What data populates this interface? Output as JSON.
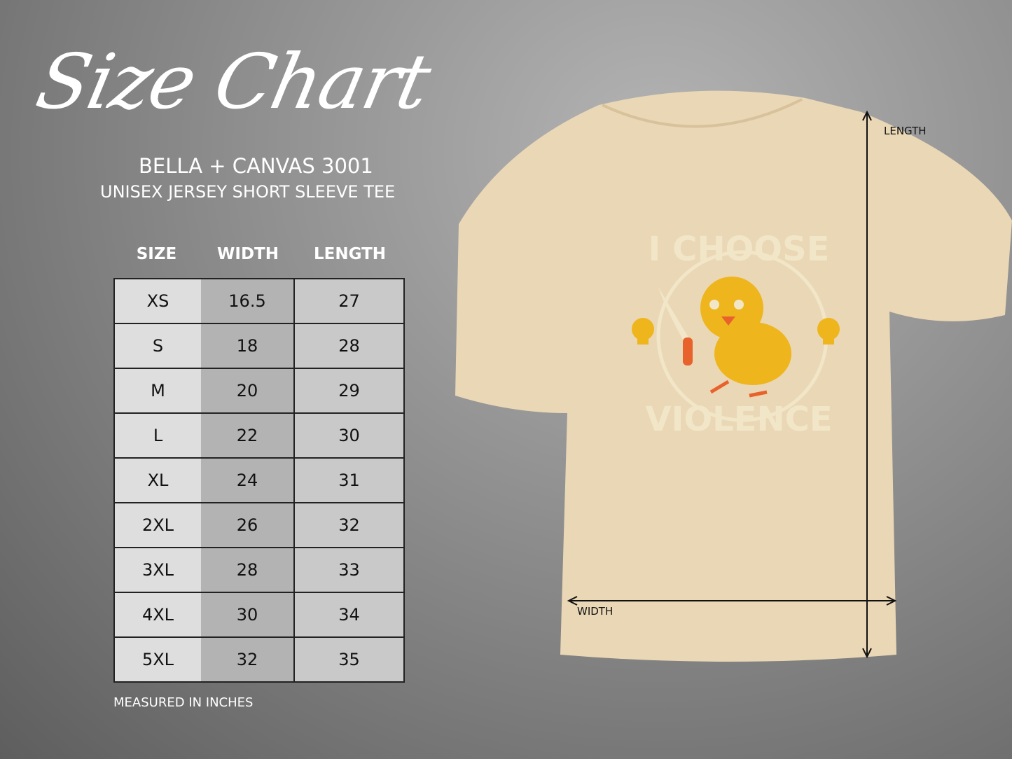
{
  "title": "Size Chart",
  "brand": "BELLA + CANVAS 3001",
  "subtitle": "UNISEX JERSEY SHORT SLEEVE TEE",
  "table": {
    "headers": [
      "SIZE",
      "WIDTH",
      "LENGTH"
    ],
    "rows": [
      [
        "XS",
        "16.5",
        "27"
      ],
      [
        "S",
        "18",
        "28"
      ],
      [
        "M",
        "20",
        "29"
      ],
      [
        "L",
        "22",
        "30"
      ],
      [
        "XL",
        "24",
        "31"
      ],
      [
        "2XL",
        "26",
        "32"
      ],
      [
        "3XL",
        "28",
        "33"
      ],
      [
        "4XL",
        "30",
        "34"
      ],
      [
        "5XL",
        "32",
        "35"
      ]
    ]
  },
  "note": "MEASURED IN INCHES",
  "shirt": {
    "color": "#ead7b5",
    "print_top": "I CHOOSE",
    "print_bottom": "VIOLENCE",
    "length_label": "LENGTH",
    "width_label": "WIDTH"
  }
}
